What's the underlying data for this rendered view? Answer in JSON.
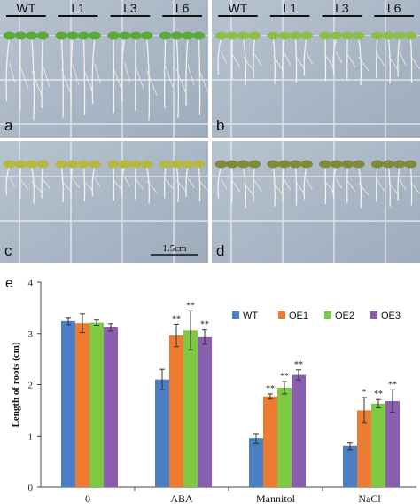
{
  "panels": [
    {
      "letter": "a",
      "labels": [
        "WT",
        "L1",
        "L3",
        "L6"
      ],
      "seedlings_per_group": 4,
      "root_level": 0.95,
      "leaf_color": "#5da83a"
    },
    {
      "letter": "b",
      "labels": [
        "WT",
        "L1",
        "L3",
        "L6"
      ],
      "seedlings_per_group": 4,
      "root_level": 0.55,
      "leaf_color": "#8cbf4a"
    },
    {
      "letter": "c",
      "labels": [],
      "seedlings_per_group": 4,
      "root_level": 0.45,
      "leaf_color": "#b5b845"
    },
    {
      "letter": "d",
      "labels": [],
      "seedlings_per_group": 4,
      "root_level": 0.5,
      "leaf_color": "#7f8a3d"
    }
  ],
  "scale_bar": {
    "label": "1.5cm"
  },
  "chart_letter": "e",
  "chart_data": {
    "type": "bar",
    "title": "",
    "xlabel": "",
    "ylabel": "Length of roots (cm)",
    "ylim": [
      0,
      4
    ],
    "yticks": [
      "0",
      "1",
      "2",
      "3",
      "4"
    ],
    "legend_position": "right",
    "grid": false,
    "categories": [
      "0",
      "ABA",
      "Mannitol",
      "NaCl"
    ],
    "series": [
      {
        "name": "WT",
        "color": "#4a7ec5",
        "values": [
          3.24,
          2.1,
          0.95,
          0.8
        ],
        "errors": [
          0.07,
          0.2,
          0.09,
          0.07
        ],
        "marks": [
          "",
          "",
          "",
          ""
        ]
      },
      {
        "name": "OE1",
        "color": "#ee7b30",
        "values": [
          3.2,
          2.96,
          1.77,
          1.5
        ],
        "errors": [
          0.18,
          0.22,
          0.05,
          0.25
        ],
        "marks": [
          "",
          "**",
          "**",
          "*"
        ]
      },
      {
        "name": "OE2",
        "color": "#7dc942",
        "values": [
          3.21,
          3.06,
          1.94,
          1.63
        ],
        "errors": [
          0.05,
          0.38,
          0.12,
          0.08
        ],
        "marks": [
          "",
          "**",
          "**",
          "**"
        ]
      },
      {
        "name": "OE3",
        "color": "#8b5fb0",
        "values": [
          3.12,
          2.93,
          2.19,
          1.68
        ],
        "errors": [
          0.07,
          0.14,
          0.1,
          0.22
        ],
        "marks": [
          "",
          "**",
          "**",
          "**"
        ]
      }
    ]
  }
}
